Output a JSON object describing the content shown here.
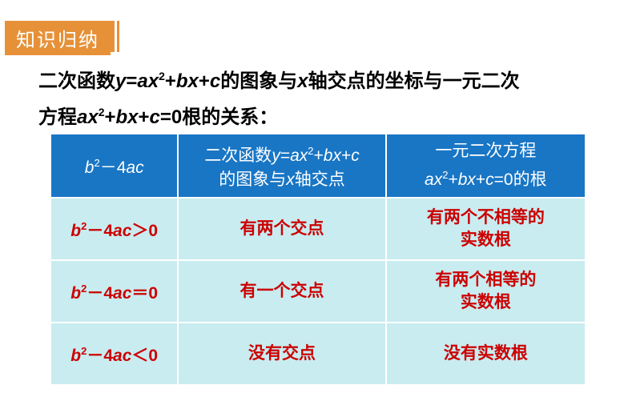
{
  "header": {
    "badge": "知识归纳"
  },
  "intro": {
    "line1_a": "二次函数",
    "line1_y": "y",
    "line1_eq": "=",
    "line1_ax": "ax",
    "line1_sq1": "2",
    "line1_plus1": "+",
    "line1_bx": "bx",
    "line1_plus2": "+",
    "line1_c": "c",
    "line1_b": "的图象与",
    "line1_x": "x",
    "line1_c2": "轴交点的坐标与一元二次",
    "line2_a": "方程",
    "line2_ax": "ax",
    "line2_sq": "2",
    "line2_plus1": "+",
    "line2_bx": "bx",
    "line2_plus2": "+",
    "line2_c": "c",
    "line2_eq0": "=0",
    "line2_b": "根的关系："
  },
  "table": {
    "header": {
      "col1": {
        "b": "b",
        "sq": "2",
        "minus": "－4",
        "ac": "ac"
      },
      "col2": {
        "pre": "二次函数",
        "y": "y",
        "eq": "=",
        "ax": "ax",
        "sq": "2",
        "p1": "+",
        "bx": "bx",
        "p2": "+",
        "c": "c",
        "line2a": "的图象与",
        "x": "x",
        "line2b": "轴交点"
      },
      "col3": {
        "line1": "一元二次方程",
        "ax": "ax",
        "sq": "2",
        "p1": "+",
        "bx": "bx",
        "p2": "+",
        "c": "c",
        "eq0": "=0",
        "tail": "的根"
      }
    },
    "rows": [
      {
        "c1": {
          "b": "b",
          "sq": "2",
          "minus": "－4",
          "ac": "ac",
          "op": "＞0"
        },
        "c2": "有两个交点",
        "c3a": "有两个不相等的",
        "c3b": "实数根"
      },
      {
        "c1": {
          "b": "b",
          "sq": "2",
          "minus": "－4",
          "ac": "ac",
          "op": "＝0"
        },
        "c2": "有一个交点",
        "c3a": "有两个相等的",
        "c3b": "实数根"
      },
      {
        "c1": {
          "b": "b",
          "sq": "2",
          "minus": "－4",
          "ac": "ac",
          "op": "＜0"
        },
        "c2": "没有交点",
        "c3a": "没有实数根",
        "c3b": ""
      }
    ]
  },
  "colors": {
    "badge_bg": "#e69138",
    "badge_text": "#ffffff",
    "intro_text": "#000000",
    "th_bg": "#1976c5",
    "th_text": "#ffffff",
    "td_bg": "#c9ecf0",
    "td_text": "#cc0000",
    "border": "#ffffff"
  }
}
